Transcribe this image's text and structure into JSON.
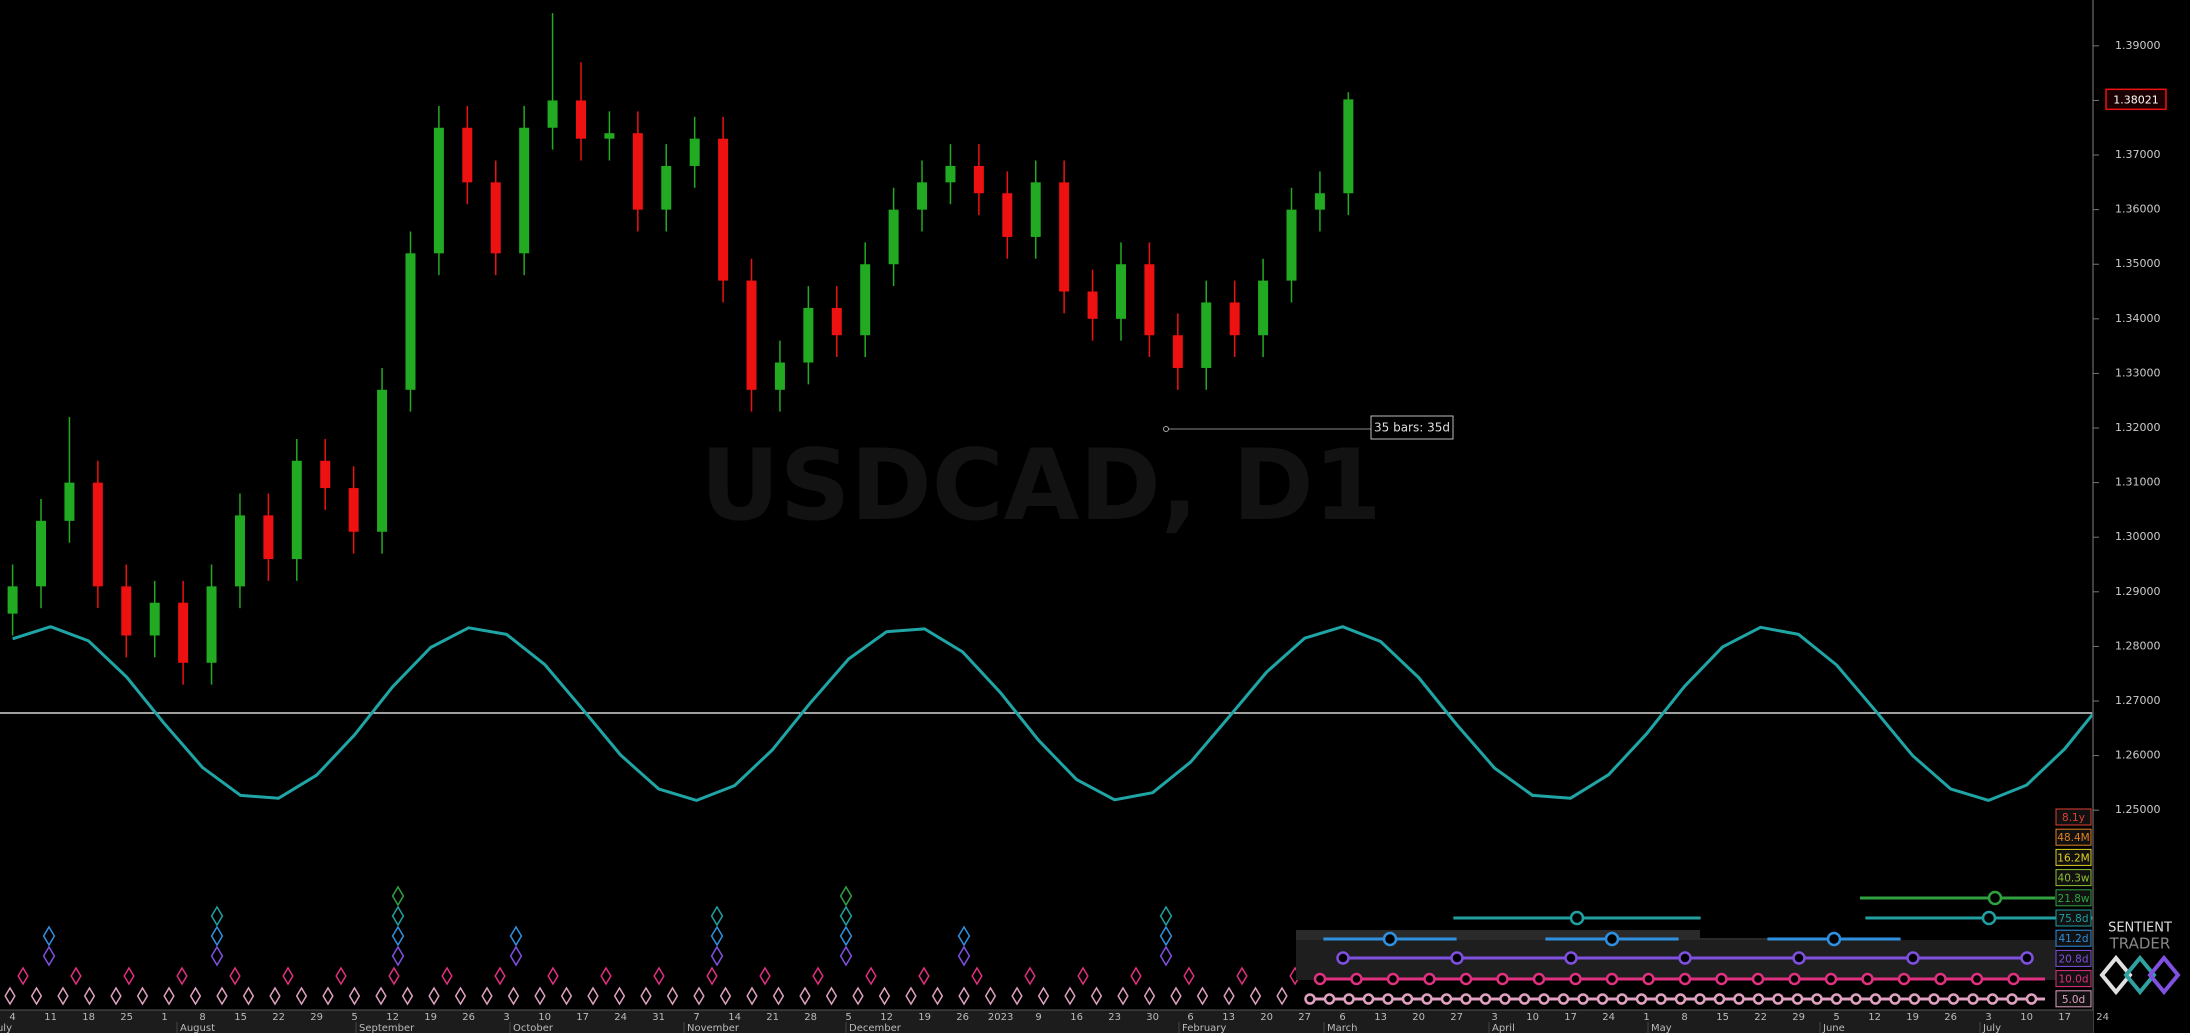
{
  "chart_data": {
    "type": "candlestick",
    "title": "USDCAD, D1",
    "up_color": "#22aa22",
    "down_color": "#ee1111",
    "open": [
      1.286,
      1.291,
      1.303,
      1.31,
      1.291,
      1.282,
      1.288,
      1.277,
      1.291,
      1.304,
      1.296,
      1.314,
      1.309,
      1.301,
      1.327,
      1.352,
      1.375,
      1.365,
      1.352,
      1.375,
      1.38,
      1.373,
      1.374,
      1.36,
      1.368,
      1.373,
      1.347,
      1.327,
      1.332,
      1.342,
      1.337,
      1.35,
      1.36,
      1.365,
      1.368,
      1.363,
      1.355,
      1.365,
      1.345,
      1.34,
      1.35,
      1.337,
      1.331,
      1.343,
      1.337,
      1.347,
      1.36,
      1.363
    ],
    "high": [
      1.295,
      1.307,
      1.322,
      1.314,
      1.295,
      1.292,
      1.292,
      1.295,
      1.308,
      1.308,
      1.318,
      1.318,
      1.313,
      1.331,
      1.356,
      1.379,
      1.379,
      1.369,
      1.379,
      1.396,
      1.387,
      1.378,
      1.378,
      1.372,
      1.377,
      1.377,
      1.351,
      1.336,
      1.346,
      1.346,
      1.354,
      1.364,
      1.369,
      1.372,
      1.372,
      1.367,
      1.369,
      1.369,
      1.349,
      1.354,
      1.354,
      1.341,
      1.347,
      1.347,
      1.351,
      1.364,
      1.367,
      1.3815
    ],
    "low": [
      1.282,
      1.287,
      1.299,
      1.287,
      1.278,
      1.278,
      1.273,
      1.273,
      1.287,
      1.292,
      1.292,
      1.305,
      1.297,
      1.297,
      1.323,
      1.348,
      1.361,
      1.348,
      1.348,
      1.371,
      1.369,
      1.369,
      1.356,
      1.356,
      1.364,
      1.343,
      1.323,
      1.323,
      1.328,
      1.333,
      1.333,
      1.346,
      1.356,
      1.361,
      1.359,
      1.351,
      1.351,
      1.341,
      1.336,
      1.336,
      1.333,
      1.327,
      1.327,
      1.333,
      1.333,
      1.343,
      1.356,
      1.359
    ],
    "close": [
      1.291,
      1.303,
      1.31,
      1.291,
      1.282,
      1.288,
      1.277,
      1.291,
      1.304,
      1.296,
      1.314,
      1.309,
      1.301,
      1.327,
      1.352,
      1.375,
      1.365,
      1.352,
      1.375,
      1.38,
      1.373,
      1.374,
      1.36,
      1.368,
      1.373,
      1.347,
      1.327,
      1.332,
      1.342,
      1.337,
      1.35,
      1.36,
      1.365,
      1.368,
      1.363,
      1.355,
      1.365,
      1.345,
      1.34,
      1.35,
      1.337,
      1.331,
      1.343,
      1.337,
      1.347,
      1.36,
      1.363,
      1.3802
    ],
    "cycle_line": {
      "color": "#1fa5a5",
      "values": [
        1.2814,
        1.2836,
        1.281,
        1.2744,
        1.2658,
        1.2578,
        1.2527,
        1.2522,
        1.2564,
        1.2638,
        1.2726,
        1.2798,
        1.2834,
        1.2822,
        1.2767,
        1.2685,
        1.2601,
        1.2539,
        1.2518,
        1.2545,
        1.2611,
        1.2697,
        1.2777,
        1.2827,
        1.2832,
        1.279,
        1.2715,
        1.2628,
        1.2556,
        1.2519,
        1.2532,
        1.2588,
        1.267,
        1.2753,
        1.2815,
        1.2836,
        1.2809,
        1.2743,
        1.2657,
        1.2577,
        1.2527,
        1.2522,
        1.2565,
        1.264,
        1.2727,
        1.2799,
        1.2835,
        1.2822,
        1.2766,
        1.2684,
        1.26,
        1.2539,
        1.2518,
        1.2546,
        1.2612,
        1.2698
      ]
    },
    "reference_line": {
      "value": 1.2678,
      "color": "#ffffff"
    },
    "last_price": {
      "value": 1.38021,
      "color": "#ee1111"
    },
    "annotation": "35 bars: 35d",
    "ylim": [
      1.2134,
      1.3984
    ],
    "yticks": [
      {
        "value": 1.25,
        "label": "1.25000"
      },
      {
        "value": 1.26,
        "label": "1.26000"
      },
      {
        "value": 1.27,
        "label": "1.27000"
      },
      {
        "value": 1.28,
        "label": "1.28000"
      },
      {
        "value": 1.29,
        "label": "1.29000"
      },
      {
        "value": 1.3,
        "label": "1.30000"
      },
      {
        "value": 1.31,
        "label": "1.31000"
      },
      {
        "value": 1.32,
        "label": "1.32000"
      },
      {
        "value": 1.33,
        "label": "1.33000"
      },
      {
        "value": 1.34,
        "label": "1.34000"
      },
      {
        "value": 1.35,
        "label": "1.35000"
      },
      {
        "value": 1.36,
        "label": "1.36000"
      },
      {
        "value": 1.37,
        "label": "1.37000"
      },
      {
        "value": 1.38,
        "label": "1.38000"
      },
      {
        "value": 1.39,
        "label": "1.39000"
      }
    ],
    "x_labels": [
      "4",
      "11",
      "18",
      "25",
      "1",
      "8",
      "15",
      "22",
      "29",
      "5",
      "12",
      "19",
      "26",
      "3",
      "10",
      "17",
      "24",
      "31",
      "7",
      "14",
      "21",
      "28",
      "5",
      "12",
      "19",
      "26",
      "2023",
      "9",
      "16",
      "23",
      "30",
      "6",
      "13",
      "20",
      "27",
      "6",
      "13",
      "20",
      "27",
      "3",
      "10",
      "17",
      "24",
      "1",
      "8",
      "15",
      "22",
      "29",
      "5",
      "12",
      "19",
      "26",
      "3",
      "10",
      "17",
      "24"
    ],
    "month_labels": [
      "July",
      "August",
      "September",
      "October",
      "November",
      "December",
      "February",
      "March",
      "April",
      "May",
      "June",
      "July"
    ],
    "cycle_labels": [
      {
        "label": "8.1y",
        "color": "#e04030"
      },
      {
        "label": "48.4M",
        "color": "#e08020"
      },
      {
        "label": "16.2M",
        "color": "#e0d020"
      },
      {
        "label": "40.3w",
        "color": "#90c030"
      },
      {
        "label": "21.8w",
        "color": "#30a040"
      },
      {
        "label": "75.8d",
        "color": "#20a0a0"
      },
      {
        "label": "41.2d",
        "color": "#3090e0"
      },
      {
        "label": "20.8d",
        "color": "#8050e0"
      },
      {
        "label": "10.0d",
        "color": "#e03080"
      },
      {
        "label": "5.0d",
        "color": "#e0a0c0"
      }
    ]
  },
  "brand": {
    "line1": "SENTIENT",
    "line2": "TRADER"
  }
}
